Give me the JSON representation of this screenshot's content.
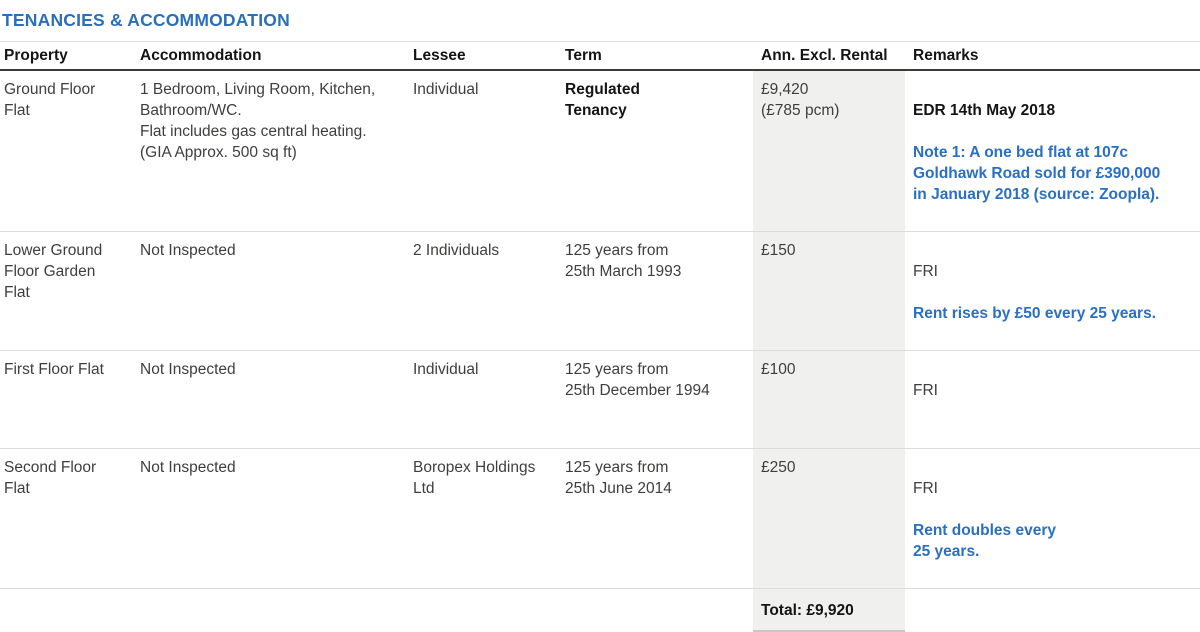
{
  "title": "TENANCIES & ACCOMMODATION",
  "colors": {
    "title_blue": "#2a6ebc",
    "note_blue": "#2a6fc2",
    "shade_gray": "#f0f0ee"
  },
  "table": {
    "headers": {
      "property": "Property",
      "accommodation": "Accommodation",
      "lessee": "Lessee",
      "term": "Term",
      "rental": "Ann. Excl. Rental",
      "remarks": "Remarks"
    },
    "rows": [
      {
        "property": "Ground Floor\nFlat",
        "accommodation": "1 Bedroom, Living Room, Kitchen,\nBathroom/WC.\nFlat includes gas central heating.\n(GIA Approx. 500 sq ft)",
        "lessee": "Individual",
        "term": "Regulated\nTenancy",
        "rental": "£9,420\n(£785 pcm)",
        "remark_main": "EDR 14th May 2018",
        "remark_note": "Note 1: A one bed flat at 107c\nGoldhawk Road sold for £390,000\nin January 2018 (source: Zoopla)."
      },
      {
        "property": "Lower Ground\nFloor Garden\nFlat",
        "accommodation": "Not Inspected",
        "lessee": "2 Individuals",
        "term": "125 years from\n25th March 1993",
        "rental": "£150",
        "remark_main": "FRI",
        "remark_note": "Rent rises by £50 every 25 years."
      },
      {
        "property": "First Floor Flat",
        "accommodation": "Not Inspected",
        "lessee": "Individual",
        "term": "125 years from\n25th December 1994",
        "rental": "£100",
        "remark_main": "FRI",
        "remark_note": ""
      },
      {
        "property": "Second Floor\nFlat",
        "accommodation": "Not Inspected",
        "lessee": "Boropex Holdings\nLtd",
        "term": "125 years from\n25th June 2014",
        "rental": "£250",
        "remark_main": "FRI",
        "remark_note": "Rent doubles every\n25 years."
      }
    ],
    "total_label": "Total: £9,920"
  }
}
